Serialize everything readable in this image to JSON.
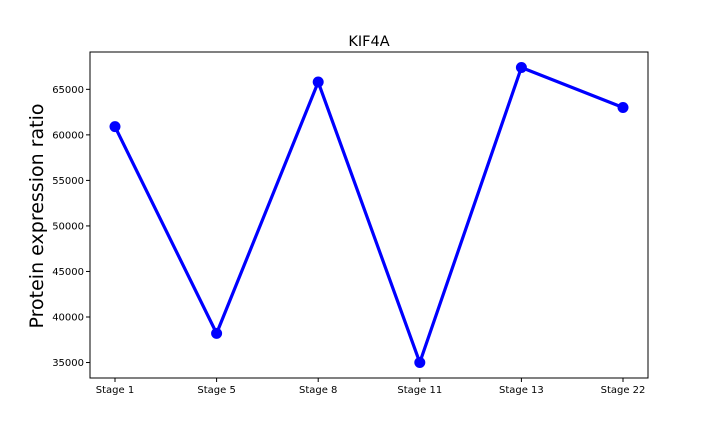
{
  "chart_data": {
    "type": "line",
    "title": "KIF4A",
    "xlabel": "",
    "ylabel": "Protein expression ratio",
    "categories": [
      "Stage 1",
      "Stage 5",
      "Stage 8",
      "Stage 11",
      "Stage 13",
      "Stage 22"
    ],
    "series": [
      {
        "values": [
          60900,
          38200,
          65800,
          35000,
          67400,
          63000
        ]
      }
    ],
    "ylim": [
      33300,
      69100
    ],
    "yticks": [
      35000,
      40000,
      45000,
      50000,
      55000,
      60000,
      65000
    ],
    "ytick_labels": [
      "35000",
      "40000",
      "45000",
      "50000",
      "55000",
      "60000",
      "65000"
    ],
    "grid": false,
    "legend": "none",
    "colors": {
      "line": "#0000ff",
      "marker": "#0000ff",
      "axes": "#000000"
    }
  }
}
